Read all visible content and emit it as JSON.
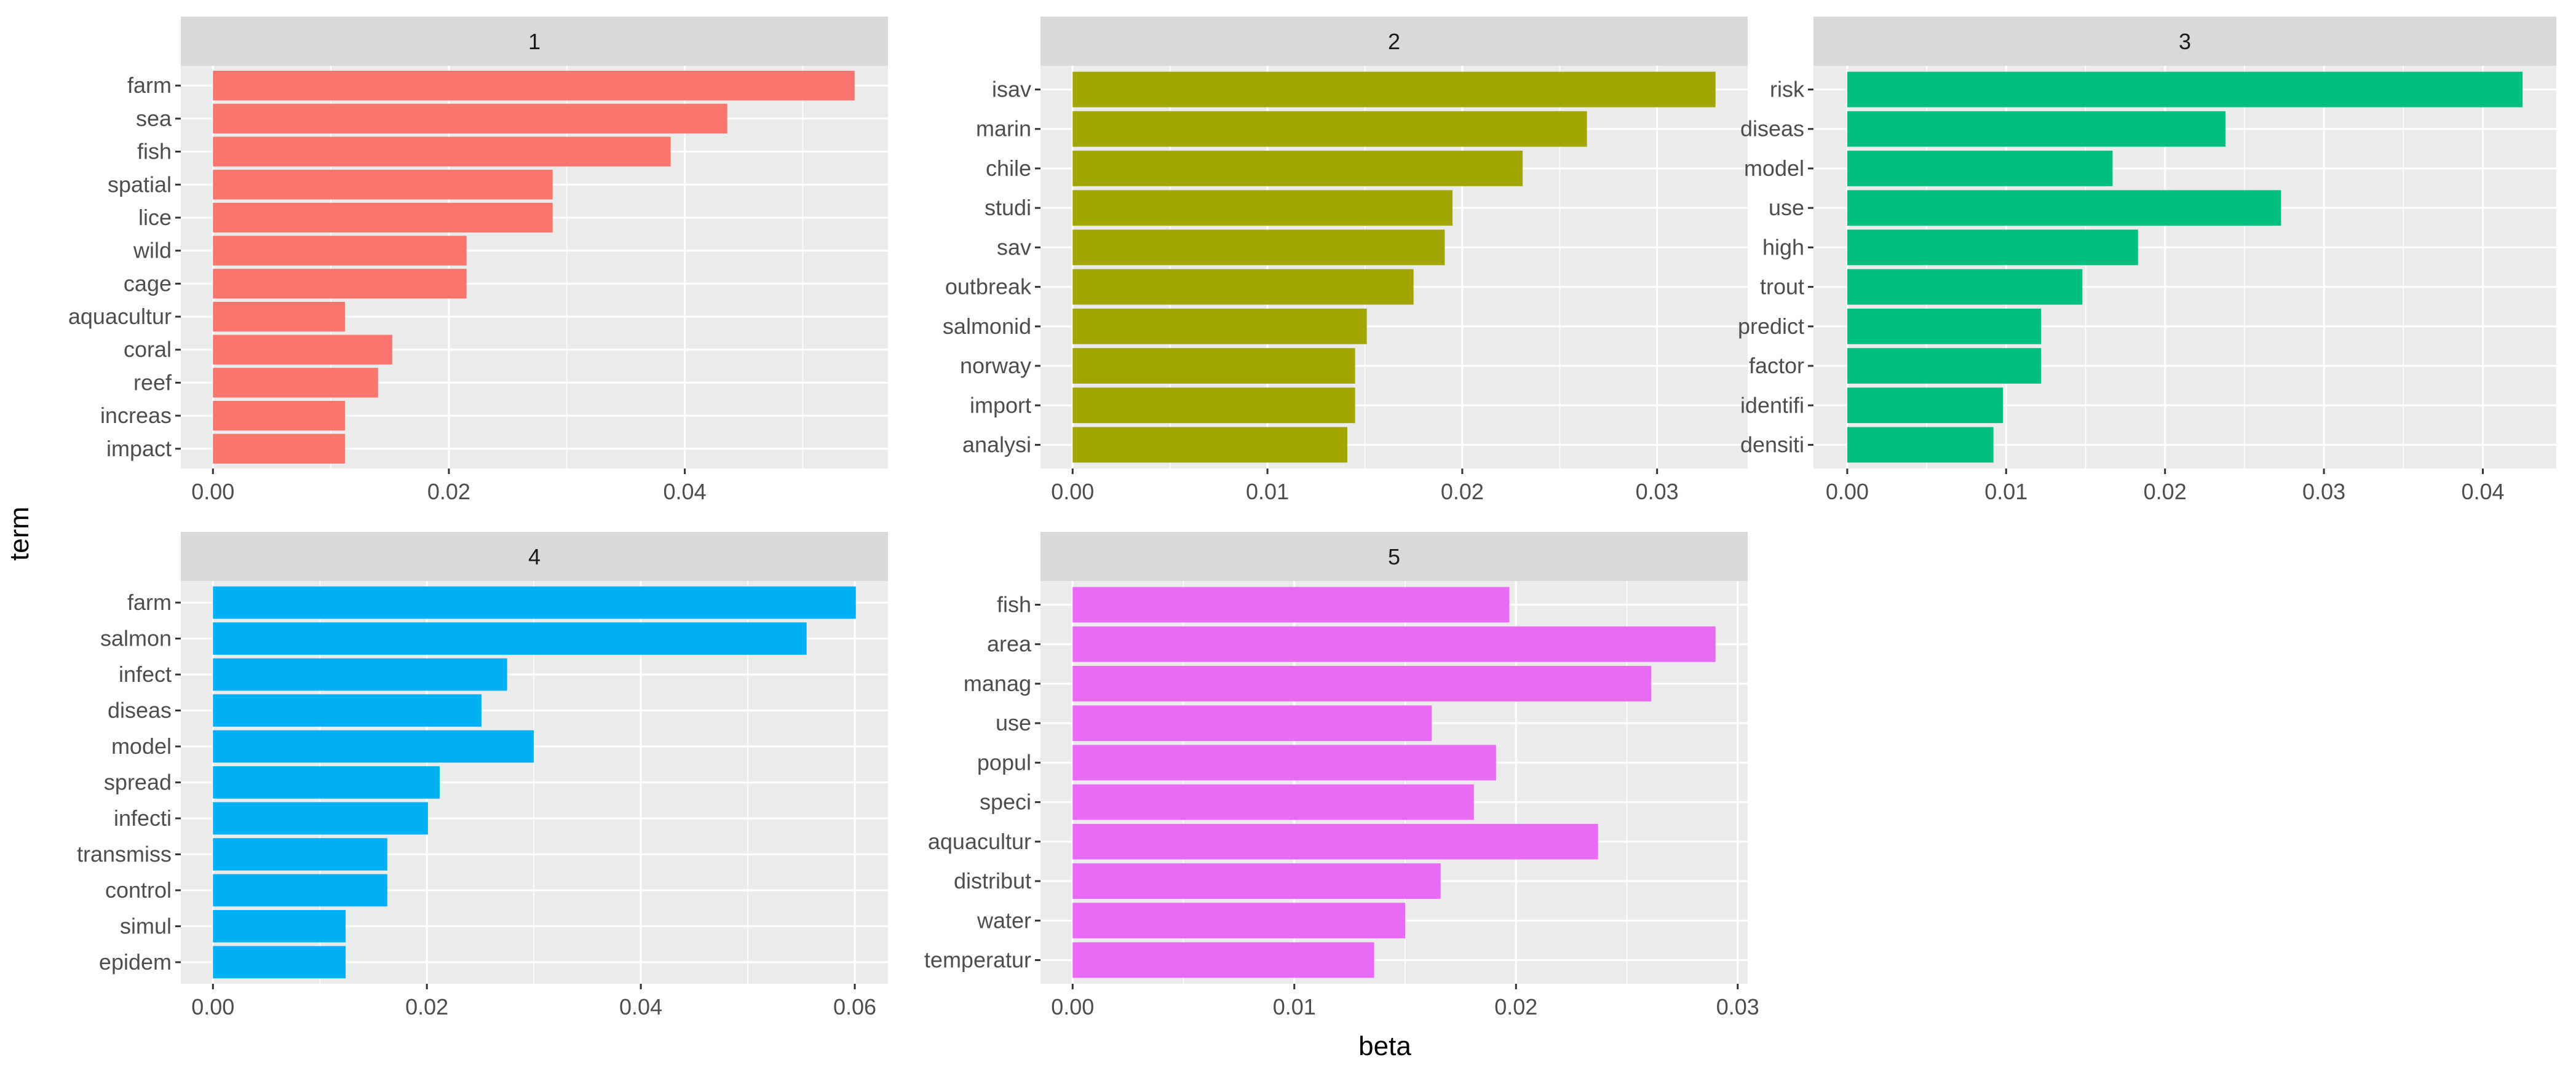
{
  "chart_data": {
    "type": "bar",
    "orientation": "horizontal",
    "xlabel": "beta",
    "ylabel": "term",
    "grid": true,
    "panels": [
      {
        "title": "1",
        "color": "#F8766D",
        "xlim": [
          0,
          0.0545
        ],
        "xticks": [
          "0.00",
          "0.02",
          "0.04"
        ],
        "xtick_values": [
          0,
          0.02,
          0.04
        ],
        "categories": [
          "farm",
          "sea",
          "fish",
          "spatial",
          "lice",
          "wild",
          "cage",
          "aquacultur",
          "coral",
          "reef",
          "increas",
          "impact"
        ],
        "values": [
          0.0544,
          0.0436,
          0.0388,
          0.0288,
          0.0288,
          0.0215,
          0.0215,
          0.0112,
          0.0152,
          0.014,
          0.0112,
          0.0112
        ]
      },
      {
        "title": "2",
        "color": "#A3A500",
        "xlim": [
          0,
          0.033
        ],
        "xticks": [
          "0.00",
          "0.01",
          "0.02",
          "0.03"
        ],
        "xtick_values": [
          0,
          0.01,
          0.02,
          0.03
        ],
        "categories": [
          "isav",
          "marin",
          "chile",
          "studi",
          "sav",
          "outbreak",
          "salmonid",
          "norway",
          "import",
          "analysi"
        ],
        "values": [
          0.033,
          0.0264,
          0.0231,
          0.0195,
          0.0191,
          0.0175,
          0.0151,
          0.0145,
          0.0145,
          0.0141
        ]
      },
      {
        "title": "3",
        "color": "#00BF7D",
        "xlim": [
          0,
          0.0425
        ],
        "xticks": [
          "0.00",
          "0.01",
          "0.02",
          "0.03",
          "0.04"
        ],
        "xtick_values": [
          0,
          0.01,
          0.02,
          0.03,
          0.04
        ],
        "categories": [
          "risk",
          "diseas",
          "model",
          "use",
          "high",
          "trout",
          "predict",
          "factor",
          "identifi",
          "densiti"
        ],
        "values": [
          0.0425,
          0.0238,
          0.0167,
          0.0273,
          0.0183,
          0.0148,
          0.0122,
          0.0122,
          0.0098,
          0.0092
        ]
      },
      {
        "title": "4",
        "color": "#00B0F6",
        "xlim": [
          0,
          0.0601
        ],
        "xticks": [
          "0.00",
          "0.02",
          "0.04",
          "0.06"
        ],
        "xtick_values": [
          0,
          0.02,
          0.04,
          0.06
        ],
        "categories": [
          "farm",
          "salmon",
          "infect",
          "diseas",
          "model",
          "spread",
          "infecti",
          "transmiss",
          "control",
          "simul",
          "epidem"
        ],
        "values": [
          0.0601,
          0.0555,
          0.0275,
          0.0251,
          0.03,
          0.0212,
          0.0201,
          0.0163,
          0.0163,
          0.0124,
          0.0124
        ]
      },
      {
        "title": "5",
        "color": "#E76BF3",
        "xlim": [
          0,
          0.029
        ],
        "xticks": [
          "0.00",
          "0.01",
          "0.02",
          "0.03"
        ],
        "xtick_values": [
          0,
          0.01,
          0.02,
          0.03
        ],
        "categories": [
          "fish",
          "area",
          "manag",
          "use",
          "popul",
          "speci",
          "aquacultur",
          "distribut",
          "water",
          "temperatur"
        ],
        "values": [
          0.0197,
          0.029,
          0.0261,
          0.0162,
          0.0191,
          0.0181,
          0.0237,
          0.0166,
          0.015,
          0.0136
        ]
      }
    ]
  }
}
